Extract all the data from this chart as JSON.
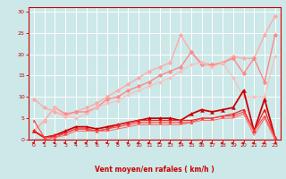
{
  "title": "",
  "xlabel": "Vent moyen/en rafales ( km/h )",
  "bg_color": "#cce8e8",
  "grid_color": "#ffffff",
  "x_ticks": [
    0,
    1,
    2,
    3,
    4,
    5,
    6,
    7,
    8,
    9,
    10,
    11,
    12,
    13,
    14,
    15,
    16,
    17,
    18,
    19,
    20,
    21,
    22,
    23
  ],
  "y_ticks": [
    0,
    5,
    10,
    15,
    20,
    25,
    30
  ],
  "xlim": [
    -0.5,
    23.5
  ],
  "ylim": [
    0,
    31
  ],
  "series": [
    {
      "color": "#ffaaaa",
      "linewidth": 1.0,
      "marker": "D",
      "markersize": 2.5,
      "x": [
        0,
        1,
        2,
        3,
        4,
        5,
        6,
        7,
        8,
        9,
        10,
        11,
        12,
        13,
        14,
        15,
        16,
        17,
        18,
        19,
        20,
        21,
        22,
        23
      ],
      "y": [
        9.5,
        7.5,
        6.5,
        5.5,
        6.5,
        7.5,
        8.5,
        10.0,
        11.5,
        13.0,
        14.5,
        16.0,
        17.0,
        18.0,
        24.5,
        20.5,
        18.0,
        17.5,
        18.0,
        19.5,
        19.0,
        19.0,
        24.5,
        29.0
      ]
    },
    {
      "color": "#ff8888",
      "linewidth": 1.0,
      "marker": "D",
      "markersize": 2.5,
      "x": [
        0,
        1,
        2,
        3,
        4,
        5,
        6,
        7,
        8,
        9,
        10,
        11,
        12,
        13,
        14,
        15,
        16,
        17,
        18,
        19,
        20,
        21,
        22,
        23
      ],
      "y": [
        2.0,
        4.5,
        7.5,
        6.0,
        6.5,
        6.5,
        7.5,
        9.5,
        10.0,
        11.5,
        12.5,
        13.5,
        15.0,
        16.0,
        17.0,
        20.5,
        17.5,
        17.5,
        18.0,
        19.0,
        15.5,
        19.0,
        13.5,
        24.5
      ]
    },
    {
      "color": "#ffbbbb",
      "linewidth": 0.8,
      "marker": "D",
      "markersize": 2.0,
      "x": [
        0,
        1,
        2,
        3,
        4,
        5,
        6,
        7,
        8,
        9,
        10,
        11,
        12,
        13,
        14,
        15,
        16,
        17,
        18,
        19,
        20,
        21,
        22,
        23
      ],
      "y": [
        2.0,
        4.5,
        7.5,
        5.5,
        5.0,
        6.0,
        7.5,
        8.5,
        9.0,
        10.5,
        11.5,
        12.5,
        13.5,
        14.5,
        16.0,
        17.5,
        18.0,
        17.0,
        18.0,
        14.5,
        10.0,
        10.0,
        10.0,
        19.5
      ]
    },
    {
      "color": "#cc0000",
      "linewidth": 1.3,
      "marker": "^",
      "markersize": 3,
      "x": [
        0,
        1,
        2,
        3,
        4,
        5,
        6,
        7,
        8,
        9,
        10,
        11,
        12,
        13,
        14,
        15,
        16,
        17,
        18,
        19,
        20,
        21,
        22,
        23
      ],
      "y": [
        2.0,
        0.5,
        1.0,
        2.0,
        3.0,
        3.0,
        2.5,
        3.0,
        3.5,
        4.0,
        4.5,
        5.0,
        5.0,
        5.0,
        4.5,
        6.0,
        7.0,
        6.5,
        7.0,
        7.5,
        11.5,
        2.0,
        9.5,
        0.5
      ]
    },
    {
      "color": "#ee2222",
      "linewidth": 0.9,
      "marker": "^",
      "markersize": 2.5,
      "x": [
        0,
        1,
        2,
        3,
        4,
        5,
        6,
        7,
        8,
        9,
        10,
        11,
        12,
        13,
        14,
        15,
        16,
        17,
        18,
        19,
        20,
        21,
        22,
        23
      ],
      "y": [
        2.0,
        0.5,
        1.0,
        1.5,
        2.5,
        2.5,
        2.0,
        2.5,
        3.5,
        4.0,
        4.5,
        4.5,
        4.5,
        4.5,
        4.5,
        4.5,
        5.0,
        5.0,
        5.5,
        6.0,
        7.0,
        2.0,
        7.0,
        0.5
      ]
    },
    {
      "color": "#ff4444",
      "linewidth": 0.8,
      "marker": "^",
      "markersize": 2.0,
      "x": [
        0,
        1,
        2,
        3,
        4,
        5,
        6,
        7,
        8,
        9,
        10,
        11,
        12,
        13,
        14,
        15,
        16,
        17,
        18,
        19,
        20,
        21,
        22,
        23
      ],
      "y": [
        4.5,
        0.5,
        0.5,
        1.5,
        2.5,
        2.5,
        2.0,
        2.5,
        3.0,
        3.5,
        4.0,
        4.0,
        4.0,
        4.0,
        4.0,
        4.0,
        5.0,
        5.0,
        5.5,
        5.5,
        6.5,
        2.0,
        5.5,
        0.5
      ]
    },
    {
      "color": "#ff6666",
      "linewidth": 0.7,
      "marker": null,
      "markersize": 0,
      "x": [
        0,
        1,
        2,
        3,
        4,
        5,
        6,
        7,
        8,
        9,
        10,
        11,
        12,
        13,
        14,
        15,
        16,
        17,
        18,
        19,
        20,
        21,
        22,
        23
      ],
      "y": [
        0.0,
        0.0,
        0.5,
        1.0,
        2.0,
        2.0,
        2.0,
        2.0,
        2.5,
        3.0,
        3.5,
        3.5,
        3.5,
        3.5,
        3.5,
        4.0,
        4.5,
        4.5,
        5.0,
        5.0,
        6.0,
        1.0,
        5.0,
        0.0
      ]
    }
  ],
  "arrow_angles_deg": [
    225,
    225,
    225,
    225,
    225,
    225,
    225,
    225,
    225,
    225,
    225,
    225,
    225,
    225,
    225,
    225,
    225,
    225,
    225,
    225,
    225,
    225,
    225,
    45
  ],
  "arrow_color": "#cc0000"
}
